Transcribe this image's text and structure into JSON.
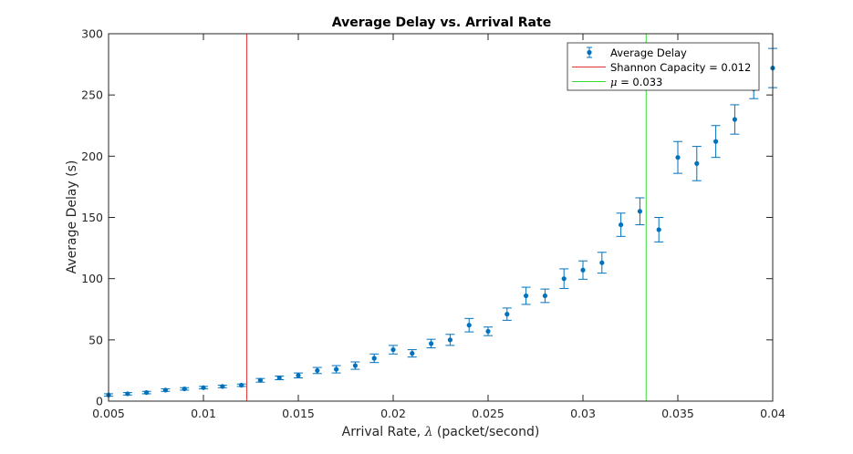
{
  "chart_data": {
    "type": "scatter",
    "title": "Average Delay vs. Arrival Rate",
    "xlabel_prefix": "Arrival Rate, ",
    "xlabel_symbol": "λ",
    "xlabel_suffix": " (packet/second)",
    "ylabel": "Average Delay (s)",
    "xlim": [
      0.005,
      0.04
    ],
    "ylim": [
      0,
      300
    ],
    "xticks": [
      0.005,
      0.01,
      0.015,
      0.02,
      0.025,
      0.03,
      0.035,
      0.04
    ],
    "xtick_labels": [
      "0.005",
      "0.01",
      "0.015",
      "0.02",
      "0.025",
      "0.03",
      "0.035",
      "0.04"
    ],
    "yticks": [
      0,
      50,
      100,
      150,
      200,
      250,
      300
    ],
    "ytick_labels": [
      "0",
      "50",
      "100",
      "150",
      "200",
      "250",
      "300"
    ],
    "grid": false,
    "legend_position": "top-right",
    "series": [
      {
        "name": "Average Delay",
        "color": "#0072BD",
        "x": [
          0.005,
          0.006,
          0.007,
          0.008,
          0.009,
          0.01,
          0.011,
          0.012,
          0.013,
          0.014,
          0.015,
          0.016,
          0.017,
          0.018,
          0.019,
          0.02,
          0.021,
          0.022,
          0.023,
          0.024,
          0.025,
          0.026,
          0.027,
          0.028,
          0.029,
          0.03,
          0.031,
          0.032,
          0.033,
          0.034,
          0.035,
          0.036,
          0.037,
          0.038,
          0.039,
          0.04
        ],
        "y": [
          5,
          6,
          7,
          9,
          10,
          11,
          12,
          13,
          17,
          19,
          21,
          25,
          26,
          29,
          35,
          42,
          39,
          47,
          50,
          62,
          57,
          71,
          86,
          86,
          100,
          107,
          113,
          144,
          155,
          140,
          199,
          194,
          212,
          230,
          255,
          272
        ],
        "err": [
          1,
          1,
          1,
          1,
          1,
          1,
          1,
          1,
          1.5,
          1.5,
          2,
          2.5,
          3,
          3,
          3.5,
          3.5,
          3,
          3.5,
          4.5,
          5.5,
          3.5,
          5,
          7,
          5.5,
          8,
          7.5,
          8.5,
          9.5,
          11,
          10,
          13,
          14,
          13,
          12,
          8,
          16
        ]
      }
    ],
    "reference_lines": [
      {
        "name": "Shannon Capacity = 0.012",
        "x": 0.01228,
        "color": "#e03131"
      },
      {
        "name_prefix": "",
        "name_symbol": "μ",
        "name_suffix": " = 0.033",
        "x": 0.03333,
        "color": "#33dd33"
      }
    ]
  }
}
